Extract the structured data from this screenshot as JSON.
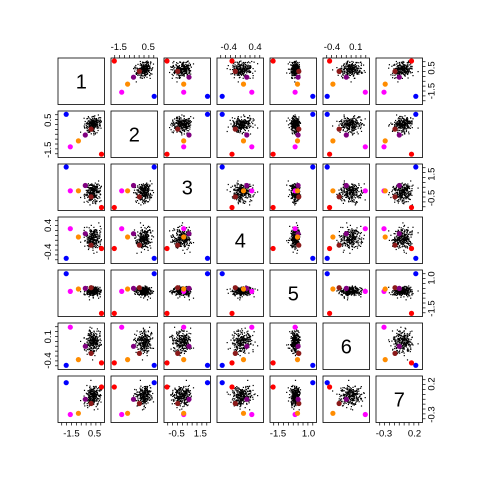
{
  "chart_data": {
    "type": "scatter",
    "title": "",
    "variables": [
      "1",
      "2",
      "3",
      "4",
      "5",
      "6",
      "7"
    ],
    "ranges": [
      [
        -2.5,
        1.2
      ],
      [
        -1.9,
        1.0
      ],
      [
        -1.4,
        2.2
      ],
      [
        -0.7,
        0.6
      ],
      [
        -2.0,
        1.5
      ],
      [
        -0.55,
        0.35
      ],
      [
        -0.4,
        0.3
      ]
    ],
    "axis_ticks": {
      "top": [
        {
          "var": 1,
          "labels": [
            "-1.5",
            "0.5"
          ],
          "values": [
            -1.5,
            0.5
          ]
        },
        {
          "var": 3,
          "labels": [
            "-0.4",
            "0.4"
          ],
          "values": [
            -0.4,
            0.4
          ]
        },
        {
          "var": 5,
          "labels": [
            "-0.4",
            "0.1"
          ],
          "values": [
            -0.4,
            0.1
          ]
        }
      ],
      "right": [
        {
          "var": 0,
          "labels": [
            "0.5",
            "-1.5"
          ],
          "values": [
            0.5,
            -1.5
          ]
        },
        {
          "var": 2,
          "labels": [
            "1.5",
            "-0.5"
          ],
          "values": [
            1.5,
            -0.5
          ]
        },
        {
          "var": 4,
          "labels": [
            "1.0",
            "-1.5"
          ],
          "values": [
            1.0,
            -1.5
          ]
        },
        {
          "var": 6,
          "labels": [
            "0.2",
            "-0.3"
          ],
          "values": [
            0.2,
            -0.3
          ]
        }
      ],
      "left": [
        {
          "var": 1,
          "labels": [
            "0.5",
            "-1.5"
          ],
          "values": [
            0.5,
            -1.5
          ]
        },
        {
          "var": 3,
          "labels": [
            "0.4",
            "-0.4"
          ],
          "values": [
            0.4,
            -0.4
          ]
        },
        {
          "var": 5,
          "labels": [
            "0.1",
            "-0.4"
          ],
          "values": [
            0.1,
            -0.4
          ]
        }
      ],
      "bottom": [
        {
          "var": 0,
          "labels": [
            "-1.5",
            "0.5"
          ],
          "values": [
            -1.5,
            0.5
          ]
        },
        {
          "var": 2,
          "labels": [
            "-0.5",
            "1.5"
          ],
          "values": [
            -0.5,
            1.5
          ]
        },
        {
          "var": 4,
          "labels": [
            "-1.5",
            "1.0"
          ],
          "values": [
            -1.5,
            1.0
          ]
        },
        {
          "var": 6,
          "labels": [
            "-0.3",
            "0.2"
          ],
          "values": [
            -0.3,
            0.2
          ]
        }
      ]
    },
    "cloud": {
      "points_per_panel": 260,
      "centers": [
        0.35,
        0.2,
        -0.05,
        0.0,
        -0.1,
        0.0,
        0.0
      ],
      "spreads": [
        0.32,
        0.28,
        0.38,
        0.16,
        0.18,
        0.11,
        0.08
      ],
      "color": "#000000"
    },
    "highlighted_points": [
      {
        "color": "#ff00ff",
        "values": [
          -1.6,
          -1.3,
          0.1,
          0.3,
          -0.1,
          0.3,
          -0.3
        ]
      },
      {
        "color": "#0000ff",
        "values": [
          -1.95,
          0.9,
          2.1,
          -0.6,
          1.35,
          -0.5,
          0.22
        ]
      },
      {
        "color": "#ff0000",
        "values": [
          1.1,
          -1.8,
          -1.3,
          -0.3,
          -1.9,
          -0.45,
          0.15
        ]
      },
      {
        "color": "#8b1a1a",
        "values": [
          0.2,
          -0.1,
          -0.4,
          -0.2,
          0.2,
          -0.25,
          -0.12
        ]
      },
      {
        "color": "#800080",
        "values": [
          -0.3,
          -0.5,
          0.55,
          0.15,
          0.15,
          -0.1,
          -0.05
        ]
      },
      {
        "color": "#ff8c00",
        "values": [
          -0.9,
          -0.9,
          0.1,
          0.05,
          0.1,
          -0.38,
          -0.28
        ]
      }
    ]
  }
}
